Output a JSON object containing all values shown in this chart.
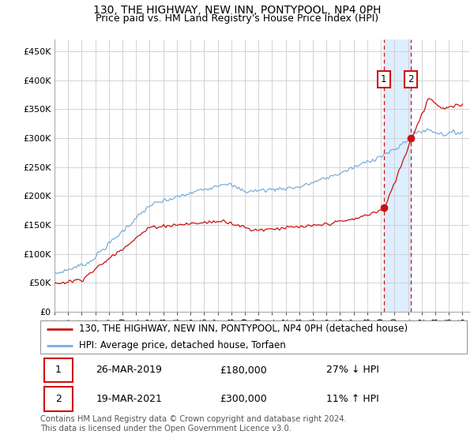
{
  "title": "130, THE HIGHWAY, NEW INN, PONTYPOOL, NP4 0PH",
  "subtitle": "Price paid vs. HM Land Registry's House Price Index (HPI)",
  "ylabel_ticks": [
    "£0",
    "£50K",
    "£100K",
    "£150K",
    "£200K",
    "£250K",
    "£300K",
    "£350K",
    "£400K",
    "£450K"
  ],
  "ytick_values": [
    0,
    50000,
    100000,
    150000,
    200000,
    250000,
    300000,
    350000,
    400000,
    450000
  ],
  "ylim": [
    0,
    470000
  ],
  "xlim_start": 1995.0,
  "xlim_end": 2025.5,
  "sale1_date": 2019.22,
  "sale1_price": 180000,
  "sale1_label": "1",
  "sale2_date": 2021.22,
  "sale2_price": 300000,
  "sale2_label": "2",
  "hpi_color": "#7aaddc",
  "price_color": "#cc1111",
  "shade_color": "#ddeeff",
  "annotation_box_color": "#cc1111",
  "legend_entries": [
    "130, THE HIGHWAY, NEW INN, PONTYPOOL, NP4 0PH (detached house)",
    "HPI: Average price, detached house, Torfaen"
  ],
  "table_rows": [
    [
      "1",
      "26-MAR-2019",
      "£180,000",
      "27% ↓ HPI"
    ],
    [
      "2",
      "19-MAR-2021",
      "£300,000",
      "11% ↑ HPI"
    ]
  ],
  "footer": "Contains HM Land Registry data © Crown copyright and database right 2024.\nThis data is licensed under the Open Government Licence v3.0.",
  "title_fontsize": 10,
  "subtitle_fontsize": 9,
  "tick_fontsize": 8,
  "legend_fontsize": 8.5
}
